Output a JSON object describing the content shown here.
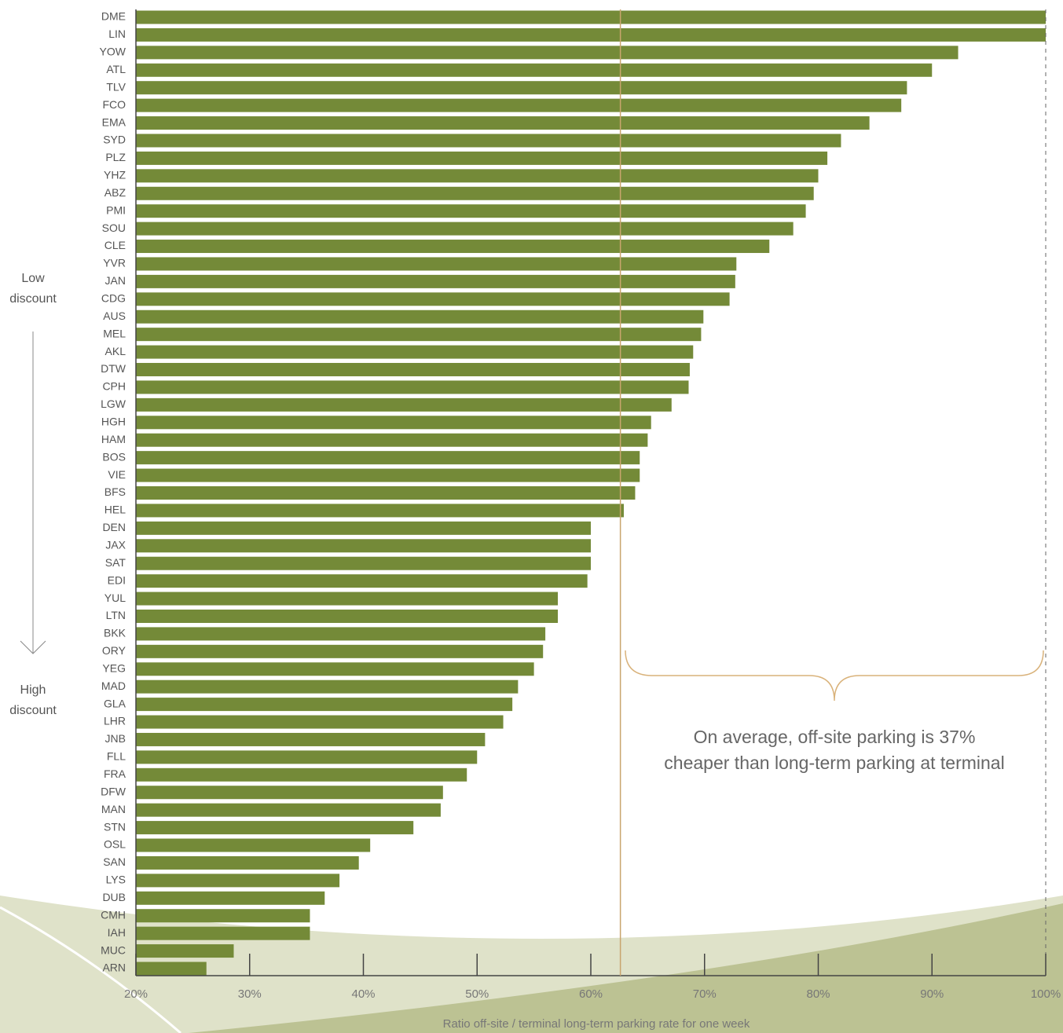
{
  "chart_data": {
    "type": "bar",
    "orientation": "horizontal",
    "categories": [
      "DME",
      "LIN",
      "YOW",
      "ATL",
      "TLV",
      "FCO",
      "EMA",
      "SYD",
      "PLZ",
      "YHZ",
      "ABZ",
      "PMI",
      "SOU",
      "CLE",
      "YVR",
      "JAN",
      "CDG",
      "AUS",
      "MEL",
      "AKL",
      "DTW",
      "CPH",
      "LGW",
      "HGH",
      "HAM",
      "BOS",
      "VIE",
      "BFS",
      "HEL",
      "DEN",
      "JAX",
      "SAT",
      "EDI",
      "YUL",
      "LTN",
      "BKK",
      "ORY",
      "YEG",
      "MAD",
      "GLA",
      "LHR",
      "JNB",
      "FLL",
      "FRA",
      "DFW",
      "MAN",
      "STN",
      "OSL",
      "SAN",
      "LYS",
      "DUB",
      "CMH",
      "IAH",
      "MUC",
      "ARN"
    ],
    "values": [
      100,
      100,
      92.3,
      90.0,
      87.8,
      87.3,
      84.5,
      82.0,
      80.8,
      80.0,
      79.6,
      78.9,
      77.8,
      75.7,
      72.8,
      72.7,
      72.2,
      69.9,
      69.7,
      69.0,
      68.7,
      68.6,
      67.1,
      65.3,
      65.0,
      64.3,
      64.3,
      63.9,
      62.9,
      60.0,
      60.0,
      60.0,
      59.7,
      57.1,
      57.1,
      56.0,
      55.8,
      55.0,
      53.6,
      53.1,
      52.3,
      50.7,
      50.0,
      49.1,
      47.0,
      46.8,
      44.4,
      40.6,
      39.6,
      37.9,
      36.6,
      35.3,
      35.3,
      28.6,
      26.2
    ],
    "color": "#748a38",
    "xlim": [
      20,
      100
    ],
    "xticks": [
      {
        "value": 20,
        "label": "20%"
      },
      {
        "value": 30,
        "label": "30%"
      },
      {
        "value": 40,
        "label": "40%"
      },
      {
        "value": 50,
        "label": "50%"
      },
      {
        "value": 60,
        "label": "60%"
      },
      {
        "value": 70,
        "label": "70%"
      },
      {
        "value": 80,
        "label": "80%"
      },
      {
        "value": 90,
        "label": "90%"
      },
      {
        "value": 100,
        "label": "100%"
      }
    ],
    "x_label": "Ratio off-site / terminal long-term parking rate for one week",
    "average_line": 62.6,
    "average_color": "#c9a56e",
    "annotation": [
      "On average, off-site parking is 37%",
      "cheaper than long-term parking at terminal"
    ],
    "side_labels": {
      "top": [
        "Low",
        "discount"
      ],
      "bottom": [
        "High",
        "discount"
      ]
    }
  }
}
